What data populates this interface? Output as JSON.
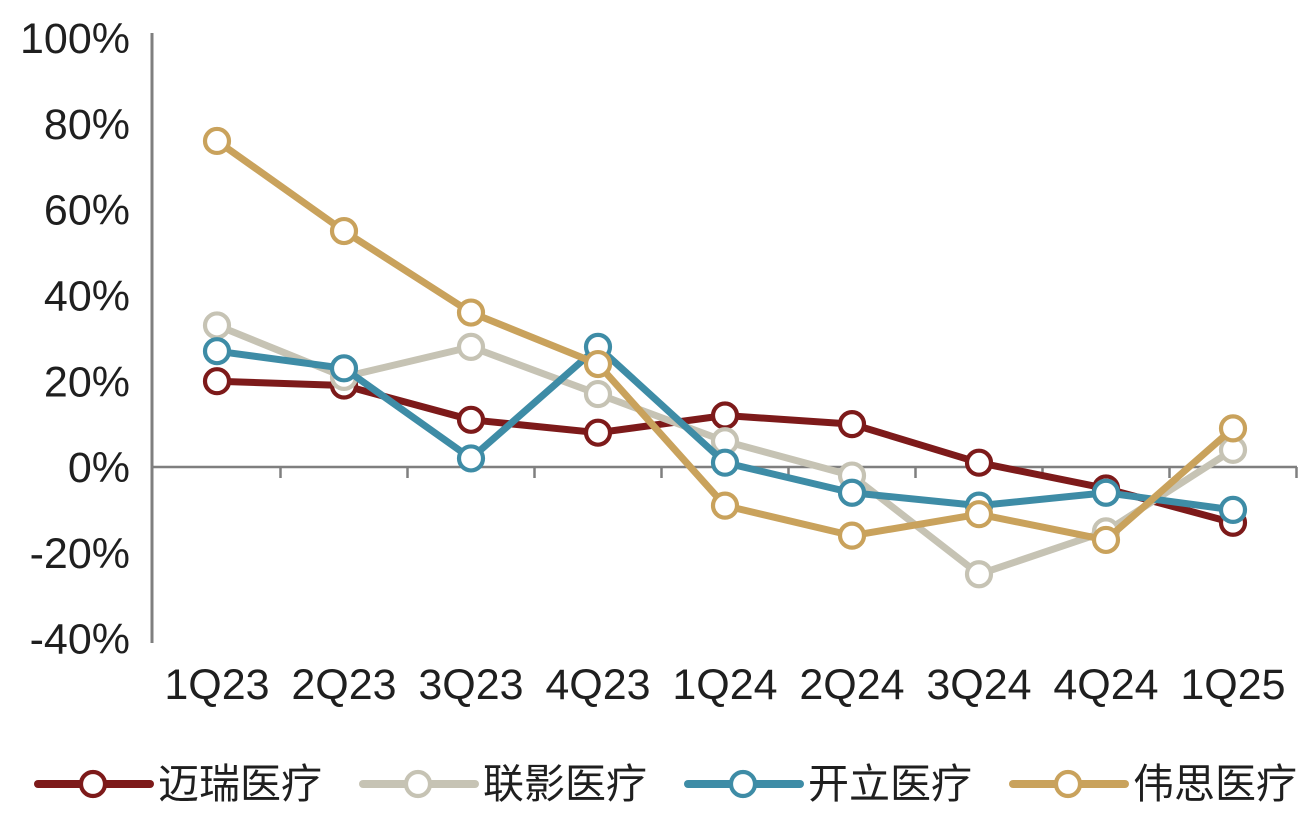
{
  "chart_data": {
    "type": "line",
    "title": "",
    "xlabel": "",
    "ylabel": "",
    "categories": [
      "1Q23",
      "2Q23",
      "3Q23",
      "4Q23",
      "1Q24",
      "2Q24",
      "3Q24",
      "4Q24",
      "1Q25"
    ],
    "series": [
      {
        "name": "迈瑞医疗",
        "color": "#7D1A1A",
        "values": [
          20,
          19,
          11,
          8,
          12,
          10,
          1,
          -5,
          -13
        ]
      },
      {
        "name": "联影医疗",
        "color": "#C6C3B4",
        "values": [
          33,
          21,
          28,
          17,
          6,
          -2,
          -25,
          -15,
          4
        ]
      },
      {
        "name": "开立医疗",
        "color": "#3E8CA6",
        "values": [
          27,
          23,
          2,
          28,
          1,
          -6,
          -9,
          -6,
          -10
        ]
      },
      {
        "name": "伟思医疗",
        "color": "#C9A25C",
        "values": [
          76,
          55,
          36,
          24,
          -9,
          -16,
          -11,
          -17,
          9
        ]
      }
    ],
    "ylim": [
      -40,
      100
    ],
    "y_tick_values": [
      100,
      80,
      60,
      40,
      20,
      0,
      -20,
      -40
    ],
    "y_tick_labels": [
      "100%",
      "80%",
      "60%",
      "40%",
      "20%",
      "0%",
      "-20%",
      "-40%"
    ],
    "unit": "percent",
    "grid": false,
    "zero_line": true,
    "marker": "open-circle",
    "legend_position": "bottom",
    "axis_color": "#7F7F7F",
    "text_color": "#1F1F1F",
    "background": "#FFFFFF"
  }
}
